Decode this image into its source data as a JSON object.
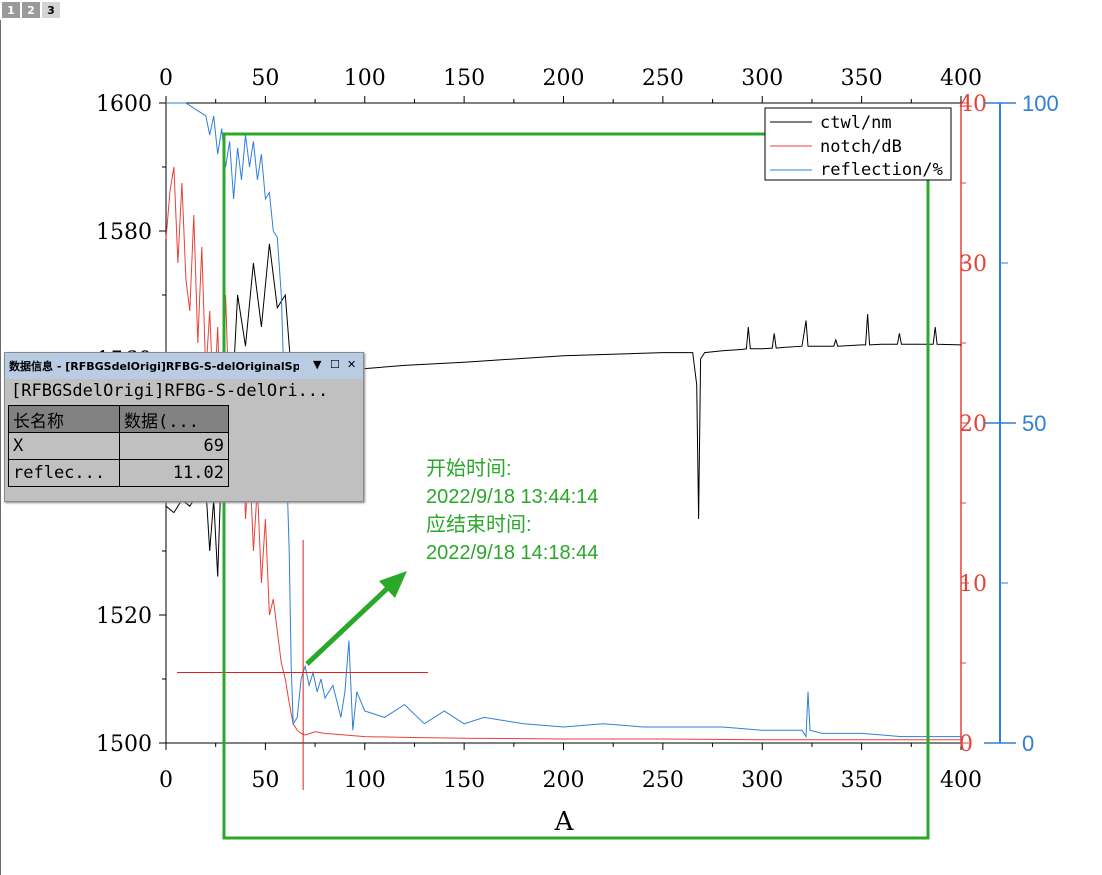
{
  "layer_tabs": [
    "1",
    "2",
    "3"
  ],
  "active_layer": "3",
  "chart_data": {
    "type": "line",
    "xlabel": "A",
    "xlim": [
      0,
      400
    ],
    "x_ticks": [
      0,
      50,
      100,
      150,
      200,
      250,
      300,
      350,
      400
    ],
    "y_left": {
      "lim": [
        1500,
        1600
      ],
      "ticks": [
        1500,
        1520,
        1540,
        1560,
        1580,
        1600
      ],
      "color": "#333333"
    },
    "y_right_red": {
      "lim": [
        0,
        40
      ],
      "ticks": [
        0,
        10,
        20,
        30,
        40
      ],
      "color": "#e8413a"
    },
    "y_right_blue": {
      "lim": [
        0,
        100
      ],
      "ticks": [
        0,
        50,
        100
      ],
      "color": "#2f7fd6"
    },
    "legend": {
      "position": "top-right",
      "entries": [
        "ctwl/nm",
        "notch/dB",
        "reflection/%"
      ]
    },
    "series": [
      {
        "name": "ctwl/nm",
        "color": "#000000",
        "axis": "left",
        "x": [
          0,
          4,
          8,
          12,
          16,
          20,
          22,
          24,
          26,
          28,
          30,
          33,
          36,
          40,
          44,
          48,
          52,
          56,
          60,
          63,
          66,
          69,
          72,
          76,
          80,
          84,
          88,
          92,
          95,
          100,
          120,
          150,
          200,
          250,
          265,
          267,
          268,
          269,
          271,
          280,
          290,
          292,
          293,
          294,
          300,
          305,
          306,
          307,
          310,
          320,
          321,
          322,
          323,
          330,
          336,
          337,
          338,
          350,
          352,
          353,
          354,
          360,
          368,
          369,
          370,
          380,
          386,
          387,
          388,
          400
        ],
        "y": [
          1537,
          1536,
          1538,
          1537,
          1539,
          1540,
          1530,
          1538,
          1526,
          1545,
          1560,
          1552,
          1570,
          1562,
          1575,
          1565,
          1578,
          1568,
          1570,
          1558,
          1560,
          1558,
          1558,
          1557.5,
          1557.8,
          1558,
          1558.2,
          1558.3,
          1558.2,
          1558.5,
          1559,
          1559.5,
          1560.5,
          1561,
          1561,
          1556,
          1535,
          1560,
          1561,
          1561.3,
          1561.5,
          1561.6,
          1565,
          1561.6,
          1561.6,
          1561.7,
          1564,
          1561.7,
          1561.8,
          1562,
          1564,
          1566,
          1562,
          1562,
          1562,
          1563,
          1562,
          1562.2,
          1562.2,
          1567,
          1562.2,
          1562.3,
          1562.3,
          1564,
          1562.3,
          1562.3,
          1562.3,
          1565,
          1562.3,
          1562.2
        ]
      },
      {
        "name": "notch/dB",
        "color": "#e8413a",
        "axis": "red",
        "x": [
          0,
          2,
          4,
          6,
          8,
          10,
          12,
          14,
          16,
          18,
          20,
          22,
          24,
          26,
          28,
          30,
          32,
          34,
          36,
          38,
          40,
          42,
          44,
          46,
          48,
          50,
          52,
          54,
          56,
          58,
          60,
          62,
          64,
          66,
          68,
          70,
          75,
          80,
          90,
          100,
          120,
          150,
          200,
          250,
          300,
          350,
          400
        ],
        "y": [
          31.5,
          34.5,
          36,
          30,
          35,
          29,
          27,
          33,
          25,
          31,
          23,
          27,
          21,
          26,
          18,
          28,
          20,
          24,
          16,
          22,
          14,
          18,
          12,
          16,
          10,
          14,
          8,
          9,
          7,
          5,
          4,
          2.5,
          1.2,
          0.8,
          0.6,
          0.5,
          0.7,
          0.6,
          0.5,
          0.4,
          0.35,
          0.3,
          0.25,
          0.25,
          0.2,
          0.2,
          0.2
        ]
      },
      {
        "name": "reflection/%",
        "color": "#2f7fd6",
        "axis": "blue",
        "x": [
          0,
          5,
          10,
          15,
          20,
          22,
          24,
          26,
          28,
          30,
          32,
          34,
          36,
          38,
          40,
          42,
          44,
          46,
          48,
          50,
          52,
          54,
          56,
          58,
          60,
          62,
          63,
          64,
          66,
          68,
          69,
          70,
          72,
          74,
          76,
          78,
          80,
          84,
          88,
          90,
          92,
          94,
          96,
          100,
          110,
          120,
          130,
          140,
          150,
          160,
          180,
          200,
          220,
          240,
          260,
          280,
          300,
          320,
          322,
          323,
          324,
          330,
          350,
          370,
          390,
          400
        ],
        "y": [
          100,
          100,
          100,
          99,
          98,
          95,
          98,
          92,
          96,
          90,
          94,
          85,
          93,
          88,
          95,
          90,
          94,
          88,
          92,
          85,
          86,
          80,
          79,
          70,
          50,
          30,
          12,
          3,
          4,
          10,
          11.02,
          12,
          9,
          11,
          8,
          10,
          7,
          9,
          4,
          8,
          16,
          2,
          8,
          5,
          4,
          6,
          3,
          5,
          3,
          4,
          3,
          2.5,
          3,
          2.5,
          2.5,
          2.5,
          2,
          2,
          1,
          8,
          2,
          1.5,
          1.5,
          1,
          1,
          1
        ]
      }
    ],
    "crosshair": {
      "x": 69,
      "y": 11.02
    }
  },
  "annotation": {
    "start_label": "开始时间:",
    "start_time": "2022/9/18 13:44:14",
    "end_label": "应结束时间:",
    "end_time": "2022/9/18 14:18:44",
    "color": "#2aa82a"
  },
  "data_info": {
    "title": "数据信息 - [RFBGSdelOrigi]RFBG-S-delOriginalSpec-T!...",
    "dropdown_glyph": "▼",
    "restore_glyph": "☐",
    "close_glyph": "✕",
    "path": "[RFBGSdelOrigi]RFBG-S-delOri...",
    "headers": [
      "长名称",
      "数据(..."
    ],
    "rows": [
      {
        "name": "X",
        "value": "69"
      },
      {
        "name": "reflec...",
        "value": "11.02"
      }
    ]
  }
}
